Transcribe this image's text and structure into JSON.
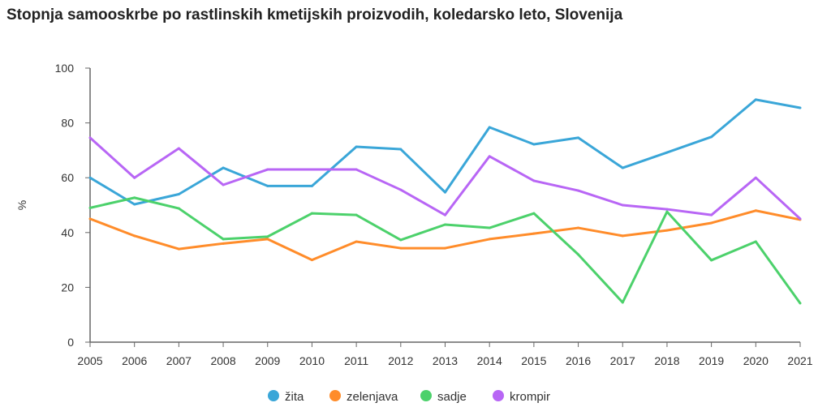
{
  "chart_data": {
    "type": "line",
    "title": "Stopnja samooskrbe po rastlinskih kmetijskih proizvodih, koledarsko leto, Slovenija",
    "xlabel": "",
    "ylabel": "%",
    "ylim": [
      0,
      100
    ],
    "yticks": [
      "0",
      "20",
      "40",
      "60",
      "80",
      "100"
    ],
    "grid": false,
    "legend": "bottom",
    "x": [
      "2005",
      "2006",
      "2007",
      "2008",
      "2009",
      "2010",
      "2011",
      "2012",
      "2013",
      "2014",
      "2015",
      "2016",
      "2017",
      "2018",
      "2019",
      "2020",
      "2021"
    ],
    "series": [
      {
        "name": "žita",
        "color": "#3aa6d8",
        "values": [
          60,
          50.3,
          54,
          63.6,
          57,
          57,
          71.3,
          70.4,
          54.7,
          78.4,
          72.2,
          74.6,
          63.6,
          69.2,
          74.9,
          88.5,
          85.5
        ]
      },
      {
        "name": "zelenjava",
        "color": "#ff8c2a",
        "values": [
          45,
          38.8,
          34,
          36,
          37.6,
          30,
          36.7,
          34.3,
          34.3,
          37.6,
          39.6,
          41.7,
          38.8,
          40.8,
          43.5,
          48,
          44.7
        ]
      },
      {
        "name": "sadje",
        "color": "#4cd16b",
        "values": [
          49,
          52.7,
          48.8,
          37.6,
          38.5,
          47,
          46.4,
          37.3,
          42.9,
          41.7,
          47,
          32,
          14.5,
          47.6,
          29.9,
          36.7,
          14.2
        ]
      },
      {
        "name": "krompir",
        "color": "#b866f5",
        "values": [
          74.6,
          60,
          70.7,
          57.4,
          63,
          63,
          63,
          55.6,
          46.4,
          67.8,
          58.9,
          55.3,
          50,
          48.5,
          46.4,
          60,
          45
        ]
      }
    ]
  }
}
